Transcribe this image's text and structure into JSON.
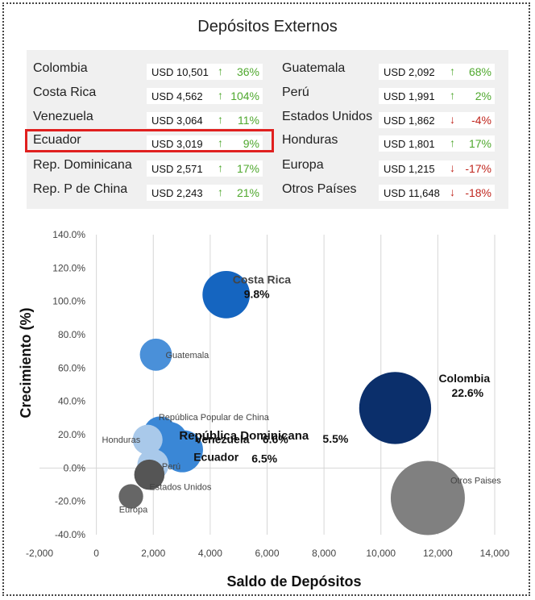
{
  "title": "Depósitos Externos",
  "table": {
    "left": [
      {
        "name": "Colombia",
        "amount": "USD 10,501",
        "dir": "up",
        "pct": "36%"
      },
      {
        "name": "Costa Rica",
        "amount": "USD 4,562",
        "dir": "up",
        "pct": "104%"
      },
      {
        "name": "Venezuela",
        "amount": "USD 3,064",
        "dir": "up",
        "pct": "11%"
      },
      {
        "name": "Ecuador",
        "amount": "USD 3,019",
        "dir": "up",
        "pct": "9%",
        "highlighted": true
      },
      {
        "name": "Rep. Dominicana",
        "amount": "USD 2,571",
        "dir": "up",
        "pct": "17%"
      },
      {
        "name": "Rep. P de China",
        "amount": "USD 2,243",
        "dir": "up",
        "pct": "21%"
      }
    ],
    "right": [
      {
        "name": "Guatemala",
        "amount": "USD 2,092",
        "dir": "up",
        "pct": "68%"
      },
      {
        "name": "Perú",
        "amount": "USD 1,991",
        "dir": "up",
        "pct": "2%"
      },
      {
        "name": "Estados Unidos",
        "amount": "USD 1,862",
        "dir": "down",
        "pct": "-4%"
      },
      {
        "name": "Honduras",
        "amount": "USD 1,801",
        "dir": "up",
        "pct": "17%"
      },
      {
        "name": "Europa",
        "amount": "USD 1,215",
        "dir": "down",
        "pct": "-17%"
      },
      {
        "name": "Otros Países",
        "amount": "USD 11,648",
        "dir": "down",
        "pct": "-18%"
      }
    ]
  },
  "arrows": {
    "up": "↑",
    "down": "↓"
  },
  "colors": {
    "up": "#4fa82e",
    "down": "#c0261e",
    "highlight": "#e0201f"
  },
  "chart_data": {
    "type": "bubble",
    "xlabel": "Saldo de Depósitos",
    "ylabel": "Crecimiento (%)",
    "xlim": [
      -2000,
      14000
    ],
    "ylim": [
      -40,
      140
    ],
    "xticks": [
      -2000,
      0,
      2000,
      4000,
      6000,
      8000,
      10000,
      12000,
      14000
    ],
    "xtick_labels": [
      "-2,000",
      "0",
      "2,000",
      "4,000",
      "6,000",
      "8,000",
      "10,000",
      "12,000",
      "14,000"
    ],
    "yticks": [
      -40,
      -20,
      0,
      20,
      40,
      60,
      80,
      100,
      120,
      140
    ],
    "ytick_labels": [
      "-40.0%",
      "-20.0%",
      "0.0%",
      "20.0%",
      "40.0%",
      "60.0%",
      "80.0%",
      "100.0%",
      "120.0%",
      "140.0%"
    ],
    "grid": true,
    "points": [
      {
        "label": "Colombia",
        "share": "22.6%",
        "x": 10501,
        "y": 36,
        "size": 22.6,
        "color": "#0b2f6b"
      },
      {
        "label": "Otros Paises",
        "share": "",
        "x": 11648,
        "y": -18,
        "size": 24.0,
        "color": "#808080"
      },
      {
        "label": "Costa Rica",
        "share": "9.8%",
        "x": 4562,
        "y": 104,
        "size": 9.8,
        "color": "#1565c0"
      },
      {
        "label": "República Dominicana",
        "share": "5.5%",
        "x": 2571,
        "y": 17,
        "size": 5.5,
        "color": "#3a87d6"
      },
      {
        "label": "Venezuela",
        "share": "6.6%",
        "x": 3064,
        "y": 11,
        "size": 6.6,
        "color": "#3a87d6"
      },
      {
        "label": "Ecuador",
        "share": "6.5%",
        "x": 3019,
        "y": 9,
        "size": 6.5,
        "color": "#3a87d6"
      },
      {
        "label": "República Popular de China",
        "share": "",
        "x": 2243,
        "y": 21,
        "size": 4.8,
        "color": "#3a87d6"
      },
      {
        "label": "Guatemala",
        "share": "",
        "x": 2092,
        "y": 68,
        "size": 4.5,
        "color": "#4a90d9"
      },
      {
        "label": "Honduras",
        "share": "",
        "x": 1801,
        "y": 17,
        "size": 3.9,
        "color": "#a9c9ea"
      },
      {
        "label": "Perú",
        "share": "",
        "x": 1991,
        "y": 2,
        "size": 4.3,
        "color": "#a9c9ea"
      },
      {
        "label": "Estados Unidos",
        "share": "",
        "x": 1862,
        "y": -4,
        "size": 4.0,
        "color": "#555555"
      },
      {
        "label": "Europa",
        "share": "",
        "x": 1215,
        "y": -17,
        "size": 2.6,
        "color": "#666666"
      }
    ]
  }
}
